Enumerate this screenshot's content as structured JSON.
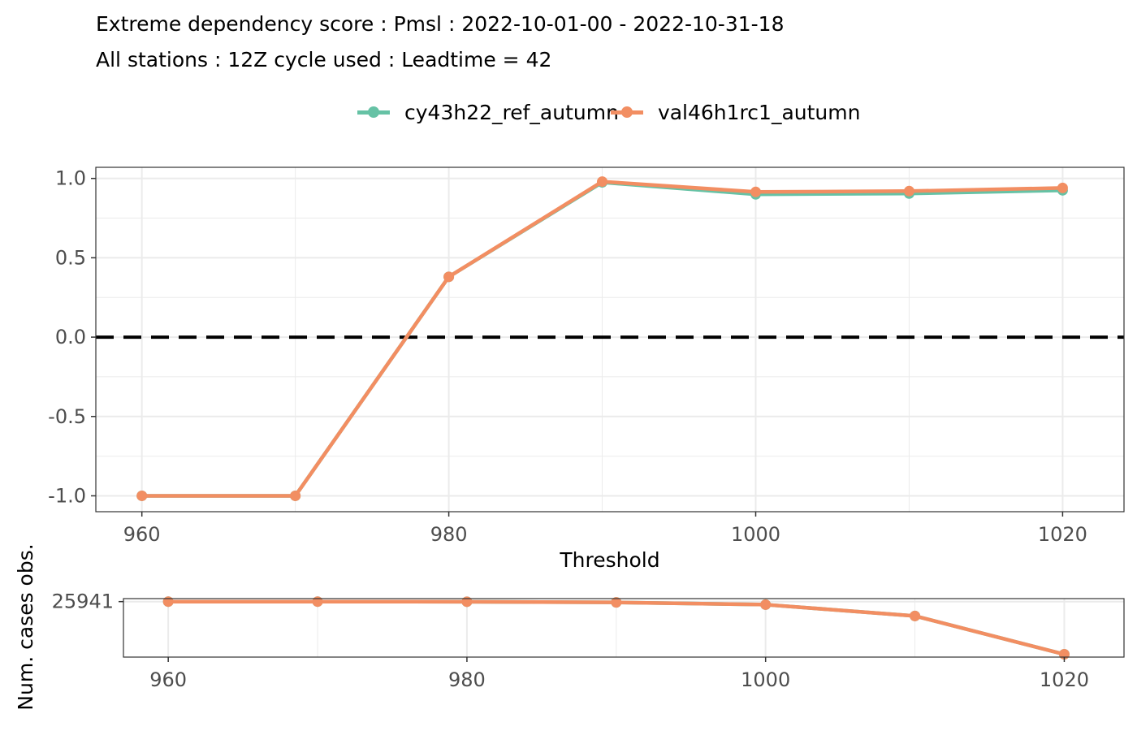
{
  "title_line1": "Extreme dependency score : Pmsl : 2022-10-01-00 - 2022-10-31-18",
  "title_line2": "All stations : 12Z cycle used : Leadtime = 42",
  "colors": {
    "ref": "#66c2a5",
    "val": "#f28e62",
    "zero_line": "#000000",
    "grid": "#ebebeb"
  },
  "chart_data": [
    {
      "type": "line",
      "xlabel": "Threshold",
      "ylabel": "",
      "xlim": [
        957,
        1024
      ],
      "ylim": [
        -1.1,
        1.07
      ],
      "x_ticks": [
        960,
        980,
        1000,
        1020
      ],
      "x_tick_labels": [
        "960",
        "980",
        "1000",
        "1020"
      ],
      "y_ticks": [
        -1.0,
        -0.5,
        0.0,
        0.5,
        1.0
      ],
      "y_tick_labels": [
        "-1.0",
        "-0.5",
        "0.0",
        "0.5",
        "1.0"
      ],
      "grid": true,
      "reference_line": {
        "y": 0,
        "style": "dashed"
      },
      "legend_position": "top",
      "x": [
        960,
        970,
        980,
        990,
        1000,
        1010,
        1020
      ],
      "series": [
        {
          "name": "cy43h22_ref_autumn",
          "values": [
            -1.0,
            -1.0,
            0.38,
            0.975,
            0.9,
            0.905,
            0.925
          ]
        },
        {
          "name": "val46h1rc1_autumn",
          "values": [
            -1.0,
            -1.0,
            0.38,
            0.98,
            0.915,
            0.92,
            0.94
          ]
        }
      ]
    },
    {
      "type": "line",
      "xlabel": "",
      "ylabel": "Num. cases obs.",
      "xlim": [
        957,
        1024
      ],
      "ylim": [
        23000,
        26100
      ],
      "x_ticks": [
        960,
        980,
        1000,
        1020
      ],
      "x_tick_labels": [
        "960",
        "980",
        "1000",
        "1020"
      ],
      "y_ticks": [
        25941
      ],
      "y_tick_labels": [
        "25941"
      ],
      "grid": true,
      "x": [
        960,
        970,
        980,
        990,
        1000,
        1010,
        1020
      ],
      "series": [
        {
          "name": "cy43h22_ref_autumn",
          "values": [
            25941,
            25940,
            25935,
            25900,
            25780,
            25180,
            23150
          ]
        },
        {
          "name": "val46h1rc1_autumn",
          "values": [
            25941,
            25940,
            25935,
            25900,
            25780,
            25180,
            23150
          ]
        }
      ]
    }
  ]
}
